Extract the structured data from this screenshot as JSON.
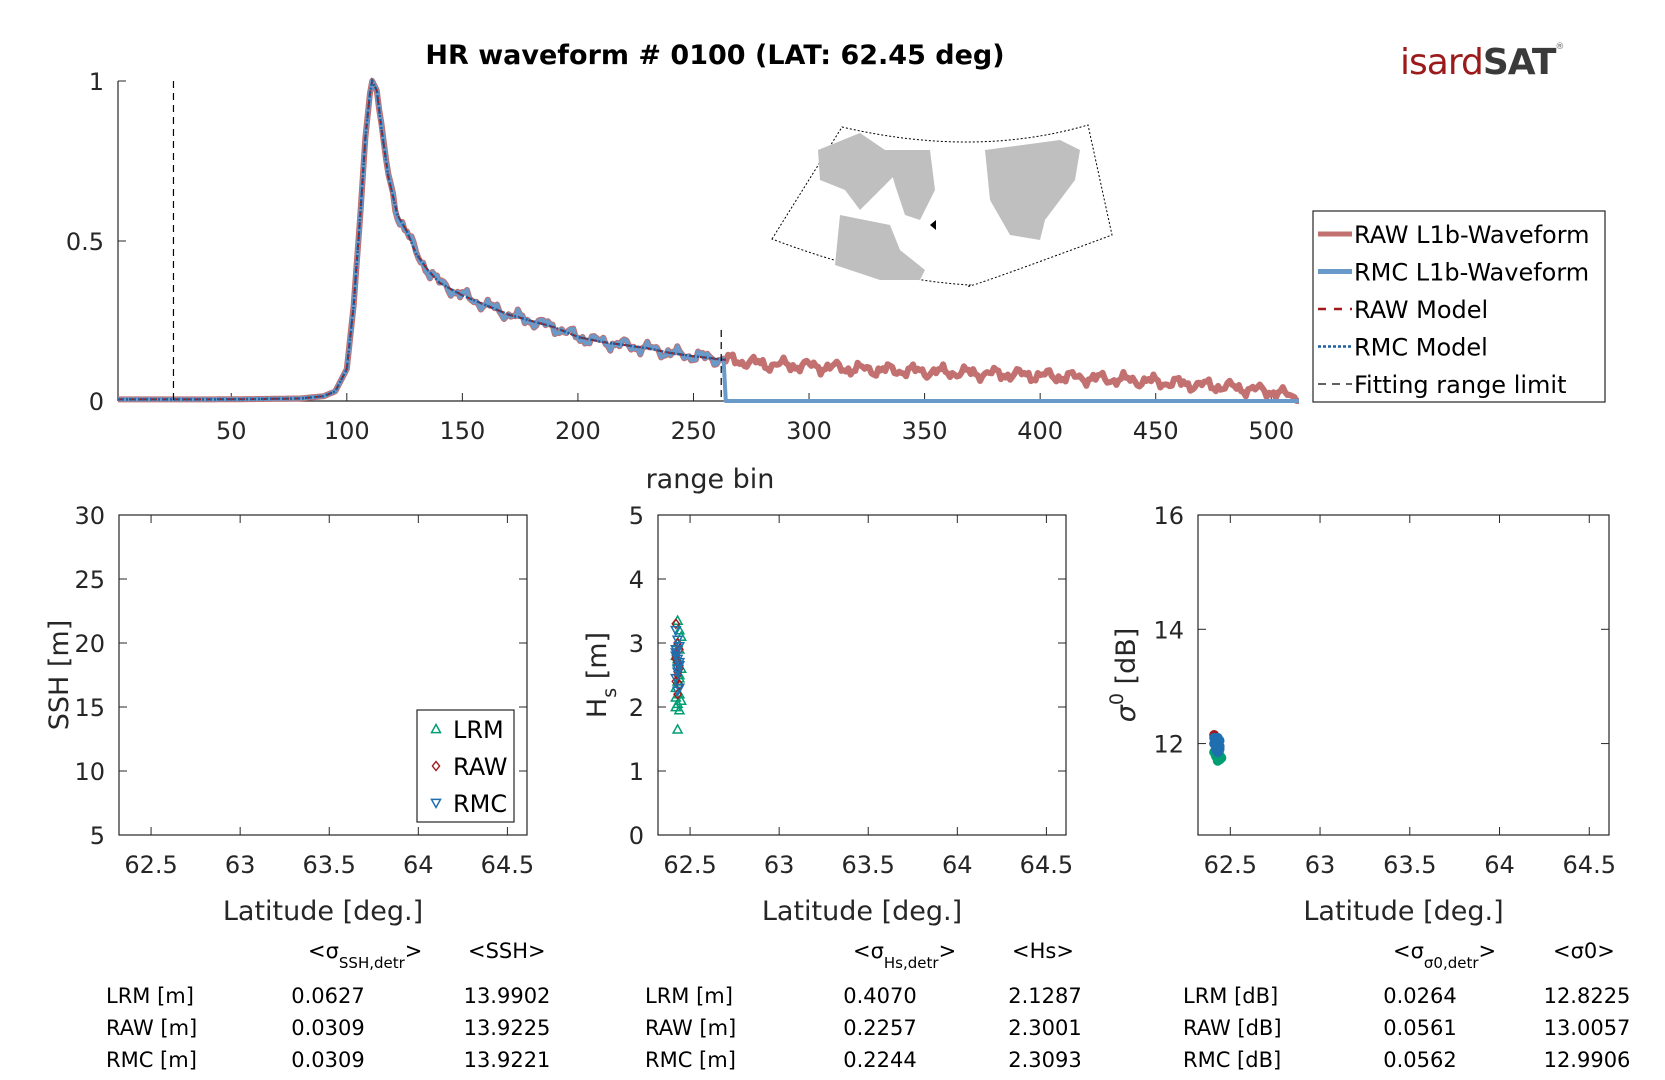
{
  "logo": {
    "part1": "isard",
    "part2": "SAT",
    "mark": "®"
  },
  "chart_data": [
    {
      "id": "waveform",
      "type": "line",
      "title": "HR waveform # 0100 (LAT: 62.45 deg)",
      "xlabel": "range bin",
      "ylabel": "",
      "xlim": [
        1,
        512
      ],
      "ylim": [
        0,
        1
      ],
      "xticks": [
        50,
        100,
        150,
        200,
        250,
        300,
        350,
        400,
        450,
        500
      ],
      "yticks": [
        0,
        0.5,
        1
      ],
      "ytick_labels": [
        "0",
        "0.5",
        "1"
      ],
      "grid": false,
      "legend_position": "right",
      "peak_bin": 111,
      "fitting_range_limits": [
        25,
        262
      ],
      "rmc_waveform_cutoff_bin": 264,
      "envelope_points": {
        "x": [
          1,
          20,
          40,
          60,
          80,
          90,
          95,
          100,
          103,
          106,
          108,
          110,
          111,
          113,
          115,
          118,
          122,
          126,
          130,
          135,
          140,
          150,
          160,
          170,
          180,
          190,
          200,
          210,
          220,
          230,
          240,
          250,
          262,
          270,
          280,
          300,
          320,
          340,
          360,
          380,
          400,
          420,
          440,
          460,
          480,
          500,
          512
        ],
        "y": [
          0.005,
          0.005,
          0.005,
          0.006,
          0.008,
          0.015,
          0.03,
          0.1,
          0.3,
          0.6,
          0.82,
          0.96,
          1.0,
          0.97,
          0.85,
          0.7,
          0.58,
          0.53,
          0.46,
          0.41,
          0.37,
          0.33,
          0.3,
          0.27,
          0.25,
          0.23,
          0.2,
          0.185,
          0.175,
          0.165,
          0.15,
          0.14,
          0.13,
          0.125,
          0.115,
          0.11,
          0.1,
          0.095,
          0.09,
          0.085,
          0.08,
          0.072,
          0.065,
          0.055,
          0.045,
          0.03,
          0.01
        ]
      },
      "series": [
        {
          "name": "RAW L1b-Waveform",
          "color": "#c27070",
          "style": "solid-thick"
        },
        {
          "name": "RMC L1b-Waveform",
          "color": "#6a9ac9",
          "style": "solid-thick"
        },
        {
          "name": "RAW Model",
          "color": "#a01a1a",
          "style": "dashed"
        },
        {
          "name": "RMC Model",
          "color": "#1f5f9f",
          "style": "dotted"
        },
        {
          "name": "Fitting range limit",
          "color": "#000000",
          "style": "dashed-thin"
        }
      ],
      "inset_map": {
        "description": "North Atlantic map with track marker",
        "land_color": "#bfbfbf",
        "marker": "triangle"
      }
    },
    {
      "id": "ssh",
      "type": "scatter",
      "xlabel": "Latitude [deg.]",
      "ylabel": "SSH [m]",
      "xlim": [
        62.32,
        64.61
      ],
      "ylim": [
        5,
        30
      ],
      "xticks": [
        62.5,
        63,
        63.5,
        64,
        64.5
      ],
      "yticks": [
        5,
        10,
        15,
        20,
        25,
        30
      ],
      "grid": false,
      "legend_position": "bottom-right",
      "legend": [
        {
          "name": "LRM",
          "marker": "triangle-up",
          "color": "#009e73"
        },
        {
          "name": "RAW",
          "marker": "diamond",
          "color": "#a01a1a"
        },
        {
          "name": "RMC",
          "marker": "triangle-down",
          "color": "#1f6fb0"
        }
      ],
      "series": []
    },
    {
      "id": "hs",
      "type": "scatter",
      "xlabel": "Latitude [deg.]",
      "ylabel": "H_s [m]",
      "xlim": [
        62.32,
        64.61
      ],
      "ylim": [
        0,
        5
      ],
      "xticks": [
        62.5,
        63,
        63.5,
        64,
        64.5
      ],
      "yticks": [
        0,
        1,
        2,
        3,
        4,
        5
      ],
      "grid": false,
      "series": [
        {
          "name": "LRM",
          "marker": "triangle-up",
          "color": "#009e73",
          "x": [
            62.43,
            62.44,
            62.42,
            62.43,
            62.45,
            62.44,
            62.42,
            62.43,
            62.44,
            62.45,
            62.43,
            62.42,
            62.44,
            62.43,
            62.45,
            62.44,
            62.43,
            62.42,
            62.44,
            62.43
          ],
          "y": [
            1.65,
            1.95,
            2.0,
            2.05,
            2.1,
            2.2,
            2.3,
            2.4,
            2.5,
            2.6,
            2.7,
            2.8,
            2.9,
            3.0,
            3.1,
            3.2,
            3.35,
            2.15,
            2.45,
            2.75
          ]
        },
        {
          "name": "RAW",
          "marker": "diamond",
          "color": "#a01a1a",
          "x": [
            62.42,
            62.43,
            62.44,
            62.42,
            62.43,
            62.44,
            62.43,
            62.42,
            62.44,
            62.43,
            62.42,
            62.44,
            62.43,
            62.42
          ],
          "y": [
            3.3,
            3.0,
            2.9,
            2.8,
            2.7,
            2.6,
            2.5,
            2.4,
            2.35,
            2.2,
            2.85,
            2.65,
            2.55,
            2.75
          ]
        },
        {
          "name": "RMC",
          "marker": "triangle-down",
          "color": "#1f6fb0",
          "x": [
            62.42,
            62.43,
            62.44,
            62.42,
            62.43,
            62.44,
            62.43,
            62.42,
            62.44,
            62.43,
            62.42,
            62.44,
            62.43,
            62.42
          ],
          "y": [
            3.2,
            3.05,
            2.95,
            2.85,
            2.75,
            2.65,
            2.55,
            2.45,
            2.3,
            2.25,
            2.9,
            2.7,
            2.6,
            2.8
          ]
        }
      ]
    },
    {
      "id": "sigma0",
      "type": "scatter",
      "xlabel": "Latitude [deg.]",
      "ylabel": "σ0 [dB]",
      "xlim": [
        62.32,
        64.61
      ],
      "ylim": [
        10.4,
        16
      ],
      "xticks": [
        62.5,
        63,
        63.5,
        64,
        64.5
      ],
      "yticks": [
        12,
        14,
        16
      ],
      "grid": false,
      "series": [
        {
          "name": "LRM",
          "marker": "dot",
          "color": "#009e73",
          "x": [
            62.41,
            62.42,
            62.43,
            62.44,
            62.45,
            62.42,
            62.43,
            62.44
          ],
          "y": [
            11.85,
            11.8,
            11.75,
            11.72,
            11.75,
            11.78,
            11.7,
            11.8
          ]
        },
        {
          "name": "RAW",
          "marker": "dot",
          "color": "#a01a1a",
          "x": [
            62.41,
            62.42,
            62.43,
            62.44
          ],
          "y": [
            12.15,
            12.1,
            12.05,
            11.95
          ]
        },
        {
          "name": "RMC",
          "marker": "dot",
          "color": "#1f6fb0",
          "x": [
            62.41,
            62.42,
            62.43,
            62.44,
            62.42,
            62.43,
            62.44,
            62.41,
            62.43,
            62.44
          ],
          "y": [
            12.1,
            12.05,
            12.0,
            11.95,
            11.9,
            11.85,
            11.9,
            12.0,
            12.1,
            12.05
          ]
        }
      ]
    }
  ],
  "stats": [
    {
      "header_sigma": "<σ",
      "header_sigma_sub": "SSH,detr",
      "header_sigma_close": ">",
      "header_mean": "<SSH>",
      "rows": [
        {
          "label": "LRM [m]",
          "sigma": "0.0627",
          "mean": "13.9902"
        },
        {
          "label": "RAW [m]",
          "sigma": "0.0309",
          "mean": "13.9225"
        },
        {
          "label": "RMC [m]",
          "sigma": "0.0309",
          "mean": "13.9221"
        }
      ]
    },
    {
      "header_sigma": "<σ",
      "header_sigma_sub": "H_s,detr",
      "header_sigma_close": ">",
      "header_mean": "<H_s>",
      "rows": [
        {
          "label": "LRM [m]",
          "sigma": "0.4070",
          "mean": "2.1287"
        },
        {
          "label": "RAW [m]",
          "sigma": "0.2257",
          "mean": "2.3001"
        },
        {
          "label": "RMC [m]",
          "sigma": "0.2244",
          "mean": "2.3093"
        }
      ]
    },
    {
      "header_sigma": "<σ",
      "header_sigma_sub": "σ0,detr",
      "header_sigma_close": ">",
      "header_mean": "<σ0>",
      "rows": [
        {
          "label": "LRM [dB]",
          "sigma": "0.0264",
          "mean": "12.8225"
        },
        {
          "label": "RAW [dB]",
          "sigma": "0.0561",
          "mean": "13.0057"
        },
        {
          "label": "RMC [dB]",
          "sigma": "0.0562",
          "mean": "12.9906"
        }
      ]
    }
  ]
}
